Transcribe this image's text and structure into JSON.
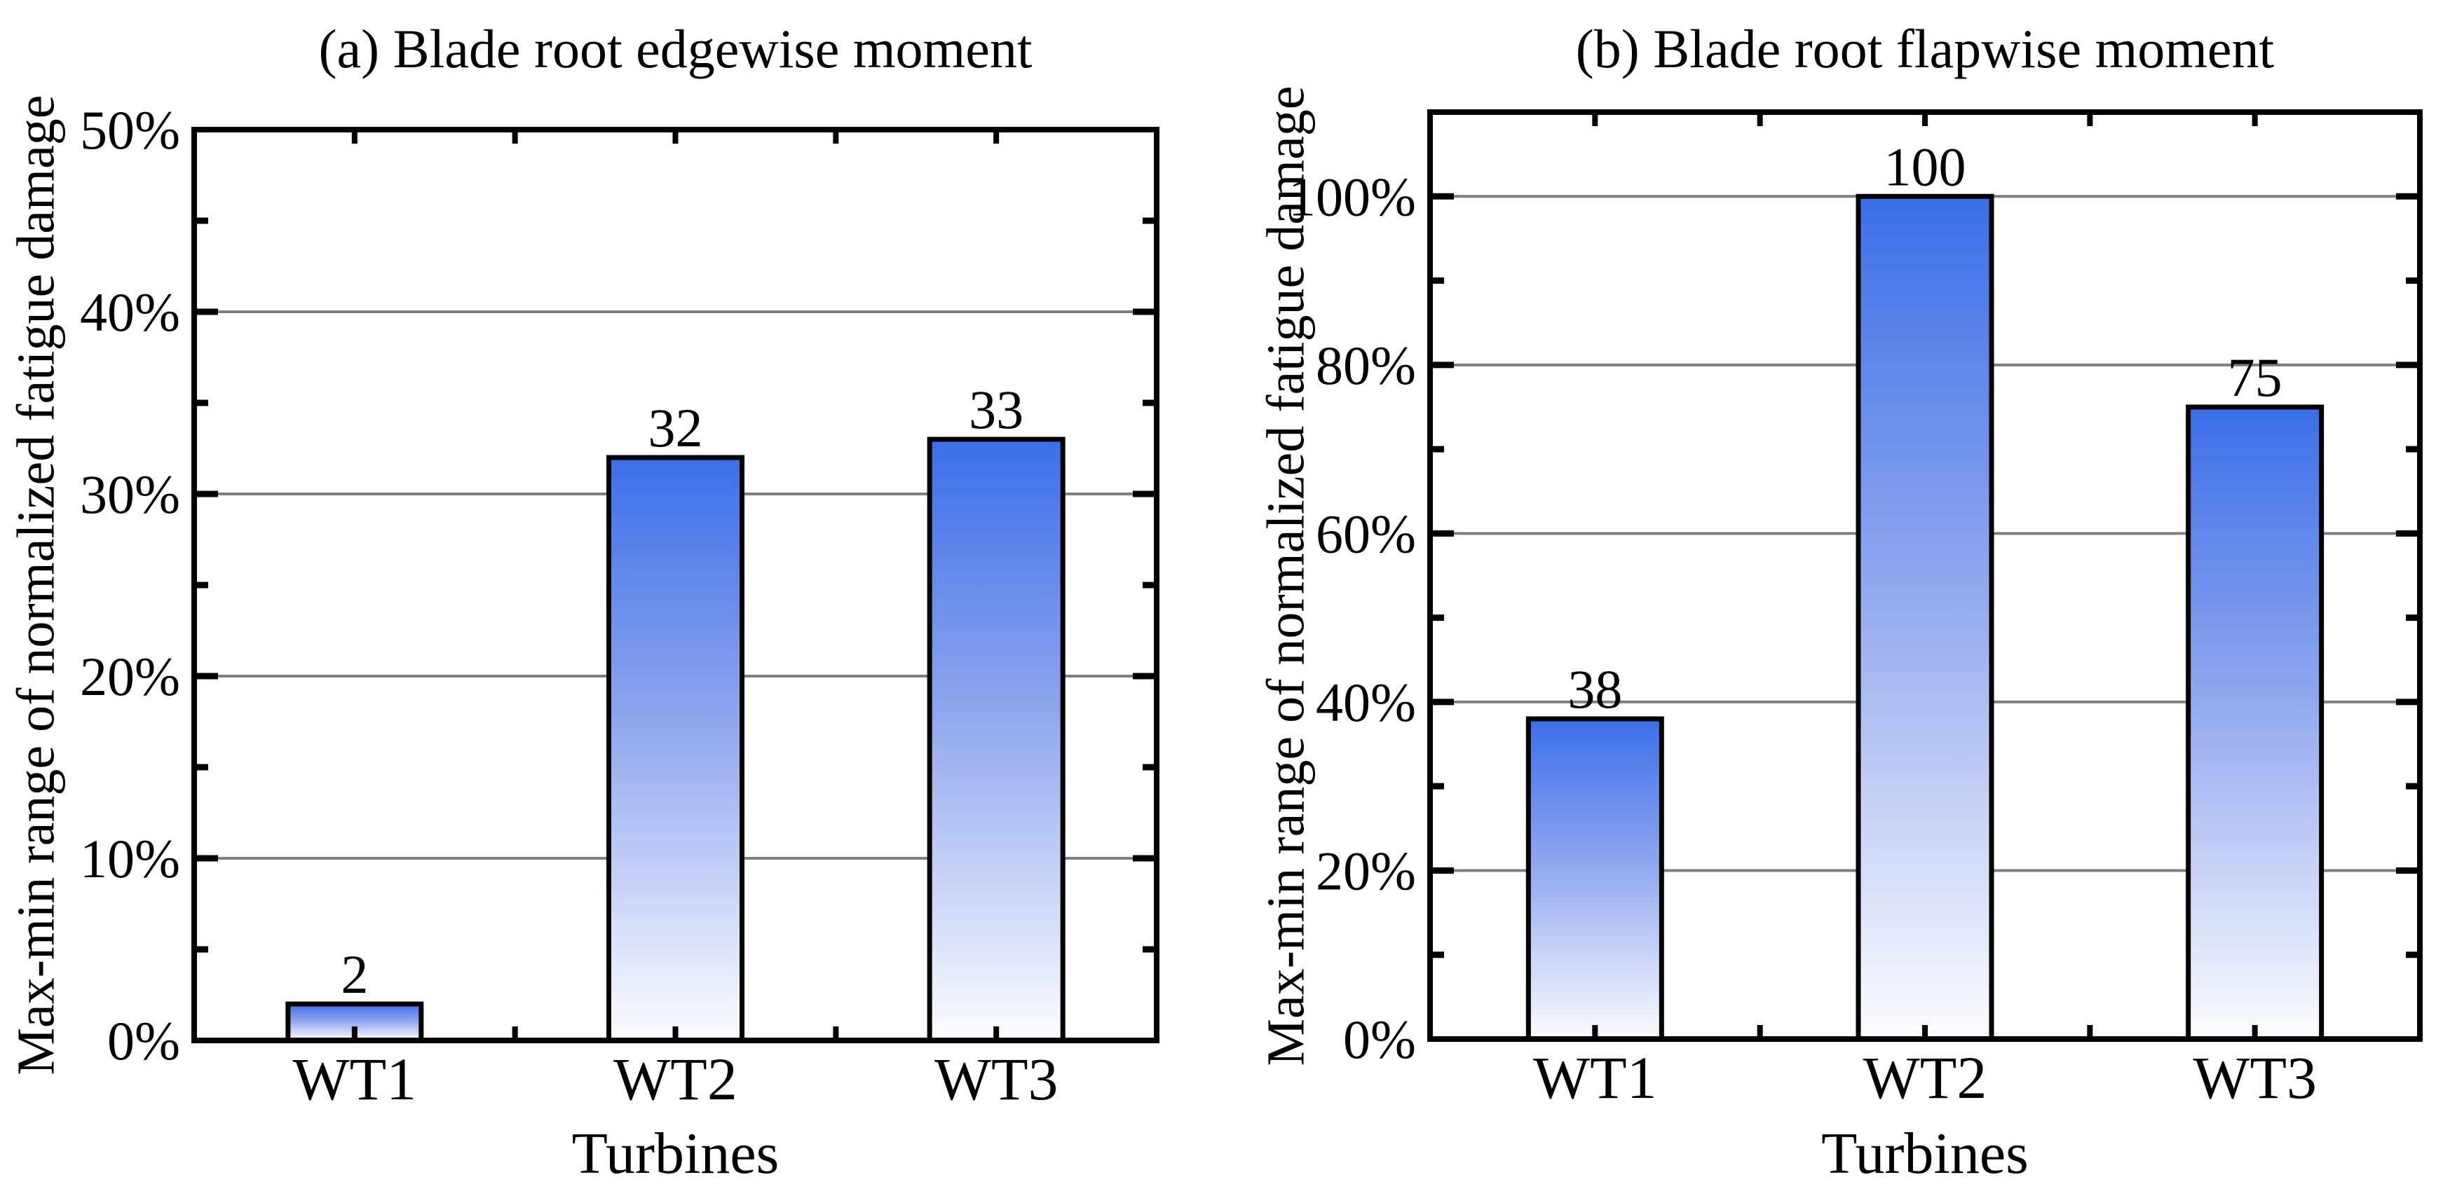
{
  "figure": {
    "background": "#FFFFFF"
  },
  "chart_data": [
    {
      "type": "bar",
      "title": "(a) Blade root edgewise moment",
      "xlabel": "Turbines",
      "ylabel": "Max-min range of normalized fatigue damage",
      "categories": [
        "WT1",
        "WT2",
        "WT3"
      ],
      "values": [
        2,
        32,
        33
      ],
      "bar_value_labels": [
        "2",
        "32",
        "33"
      ],
      "ylim": [
        0,
        50
      ],
      "y_major_ticks": [
        0,
        10,
        20,
        30,
        40,
        50
      ],
      "y_tick_labels": [
        "0%",
        "10%",
        "20%",
        "30%",
        "40%",
        "50%"
      ],
      "y_minor_ticks": [
        5,
        15,
        25,
        35,
        45
      ],
      "gridlines": [
        10,
        20,
        30,
        40
      ],
      "grid": "horizontal",
      "legend": null
    },
    {
      "type": "bar",
      "title": "(b) Blade root flapwise moment",
      "xlabel": "Turbines",
      "ylabel": "Max-min range of normalized fatigue damage",
      "categories": [
        "WT1",
        "WT2",
        "WT3"
      ],
      "values": [
        38,
        100,
        75
      ],
      "bar_value_labels": [
        "38",
        "100",
        "75"
      ],
      "ylim": [
        0,
        110
      ],
      "y_major_ticks": [
        0,
        20,
        40,
        60,
        80,
        100
      ],
      "y_tick_labels": [
        "0%",
        "20%",
        "40%",
        "60%",
        "80%",
        "100%"
      ],
      "y_minor_ticks": [
        10,
        30,
        50,
        70,
        90
      ],
      "gridlines": [
        20,
        40,
        60,
        80,
        100
      ],
      "grid": "horizontal",
      "legend": null
    }
  ],
  "style": {
    "bar_fill_top": "#3B6FE8",
    "bar_fill_mid": "#8FA6EE",
    "bar_fill_bottom": "#FCFDFF",
    "bar_border_color": "#000000",
    "gridline_color": "#7F7F7F",
    "axis_color": "#000000",
    "text_color": "#000000"
  }
}
